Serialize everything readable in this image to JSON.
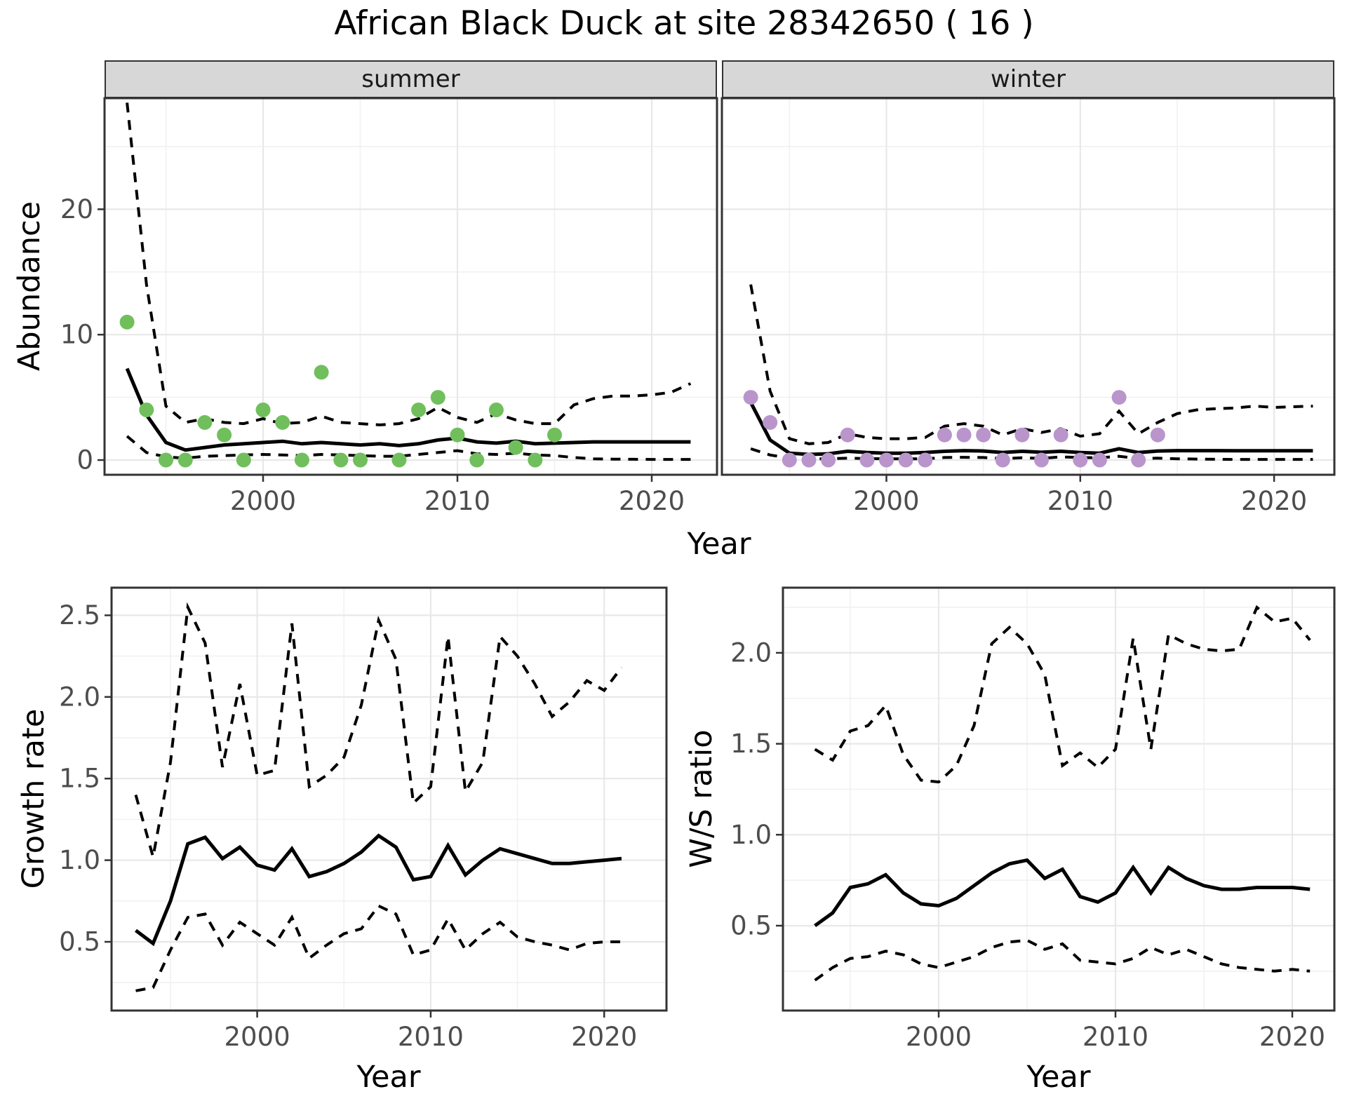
{
  "title": "African Black Duck at site 28342650 ( 16 )",
  "axes": {
    "x_label": "Year",
    "abundance_label": "Abundance",
    "growth_label": "Growth rate",
    "ws_label": "W/S ratio"
  },
  "colors": {
    "summer_point": "#70BF5C",
    "winter_point": "#B995CC",
    "line": "#000000",
    "strip_bg": "#D7D7D7",
    "strip_border": "#333333",
    "panel_border": "#333333",
    "grid_major": "#E8E8E8",
    "grid_minor": "#F1F1F1",
    "tick_text": "#4D4D4D",
    "tick_mark": "#333333"
  },
  "chart_data": [
    {
      "type": "line",
      "title": "Abundance by Year faceted by season",
      "xlabel": "Year",
      "ylabel": "Abundance",
      "legend_position": "none",
      "grid": true,
      "xticks": [
        2000,
        2010,
        2020
      ],
      "xtick_labels": [
        "2000",
        "2010",
        "2020"
      ],
      "xticks_minor": [
        1995,
        2005,
        2015
      ],
      "yticks": [
        0,
        10,
        20
      ],
      "ytick_labels": [
        "0",
        "10",
        "20"
      ],
      "yticks_minor": [
        5,
        15,
        25
      ],
      "xlim": [
        1991.5,
        2023.3
      ],
      "ylim": [
        -1.2,
        28.9
      ],
      "line_years": [
        1993,
        1994,
        1995,
        1996,
        1997,
        1998,
        1999,
        2000,
        2001,
        2002,
        2003,
        2004,
        2005,
        2006,
        2007,
        2008,
        2009,
        2010,
        2011,
        2012,
        2013,
        2014,
        2015,
        2016,
        2017,
        2018,
        2019,
        2020,
        2021,
        2022
      ],
      "facets": [
        {
          "label": "summer",
          "points": {
            "years": [
              1993,
              1994,
              1995,
              1996,
              1997,
              1998,
              1999,
              2000,
              2001,
              2002,
              2003,
              2004,
              2005,
              2007,
              2008,
              2009,
              2010,
              2011,
              2012,
              2013,
              2014,
              2015
            ],
            "values": [
              11,
              4,
              0,
              0,
              3,
              2,
              0,
              4,
              3,
              0,
              7,
              0,
              0,
              0,
              4,
              5,
              2,
              0,
              4,
              1,
              0,
              2
            ]
          },
          "median": [
            7.3,
            3.6,
            1.4,
            0.8,
            1.0,
            1.2,
            1.3,
            1.4,
            1.5,
            1.3,
            1.4,
            1.3,
            1.2,
            1.3,
            1.15,
            1.3,
            1.6,
            1.75,
            1.45,
            1.35,
            1.5,
            1.3,
            1.35,
            1.4,
            1.45,
            1.45,
            1.45,
            1.45,
            1.45,
            1.45
          ],
          "upper": [
            28.5,
            14,
            4.3,
            3.0,
            3.3,
            3.0,
            2.9,
            3.3,
            2.9,
            3.0,
            3.5,
            3.0,
            2.9,
            2.8,
            2.9,
            3.3,
            4.2,
            3.4,
            3.0,
            3.7,
            3.2,
            2.9,
            2.9,
            4.4,
            4.9,
            5.1,
            5.1,
            5.2,
            5.4,
            6.1
          ],
          "lower": [
            1.9,
            0.6,
            0.25,
            0.15,
            0.3,
            0.35,
            0.4,
            0.45,
            0.4,
            0.35,
            0.45,
            0.4,
            0.35,
            0.3,
            0.3,
            0.45,
            0.6,
            0.75,
            0.5,
            0.45,
            0.55,
            0.4,
            0.35,
            0.2,
            0.1,
            0.07,
            0.06,
            0.05,
            0.05,
            0.05
          ]
        },
        {
          "label": "winter",
          "points": {
            "years": [
              1993,
              1994,
              1995,
              1996,
              1997,
              1998,
              1999,
              2000,
              2001,
              2002,
              2003,
              2004,
              2005,
              2006,
              2007,
              2008,
              2009,
              2010,
              2011,
              2012,
              2013,
              2014
            ],
            "values": [
              5,
              3,
              0,
              0,
              0,
              2,
              0,
              0,
              0,
              0,
              2,
              2,
              2,
              0,
              2,
              0,
              2,
              0,
              0,
              5,
              0,
              2
            ]
          },
          "median": [
            4.6,
            1.6,
            0.55,
            0.45,
            0.5,
            0.7,
            0.6,
            0.55,
            0.55,
            0.6,
            0.7,
            0.75,
            0.72,
            0.6,
            0.7,
            0.62,
            0.7,
            0.6,
            0.55,
            0.9,
            0.6,
            0.72,
            0.75,
            0.75,
            0.75,
            0.74,
            0.74,
            0.74,
            0.74,
            0.74
          ],
          "upper": [
            14,
            5.5,
            1.7,
            1.3,
            1.4,
            2.1,
            1.8,
            1.7,
            1.7,
            1.8,
            2.7,
            2.9,
            2.7,
            2.0,
            2.5,
            2.2,
            2.5,
            1.9,
            2.1,
            3.9,
            2.1,
            3.0,
            3.7,
            4.0,
            4.1,
            4.15,
            4.3,
            4.2,
            4.25,
            4.3
          ],
          "lower": [
            0.9,
            0.4,
            0.15,
            0.1,
            0.1,
            0.15,
            0.12,
            0.1,
            0.1,
            0.1,
            0.2,
            0.22,
            0.2,
            0.12,
            0.18,
            0.13,
            0.25,
            0.2,
            0.18,
            0.3,
            0.12,
            0.15,
            0.1,
            0.08,
            0.06,
            0.05,
            0.05,
            0.05,
            0.05,
            0.05
          ]
        }
      ]
    },
    {
      "type": "line",
      "title": "Growth rate",
      "xlabel": "Year",
      "ylabel": "Growth rate",
      "grid": true,
      "xticks": [
        2000,
        2010,
        2020
      ],
      "xtick_labels": [
        "2000",
        "2010",
        "2020"
      ],
      "xticks_minor": [
        1995,
        2005,
        2015
      ],
      "yticks": [
        0.5,
        1.0,
        1.5,
        2.0,
        2.5
      ],
      "ytick_labels": [
        "0.5",
        "1.0",
        "1.5",
        "2.0",
        "2.5"
      ],
      "yticks_minor": [
        0.25,
        0.75,
        1.25,
        1.75,
        2.25
      ],
      "xlim": [
        1991.6,
        2023.6
      ],
      "ylim": [
        0.08,
        2.67
      ],
      "years": [
        1993,
        1994,
        1995,
        1996,
        1997,
        1998,
        1999,
        2000,
        2001,
        2002,
        2003,
        2004,
        2005,
        2006,
        2007,
        2008,
        2009,
        2010,
        2011,
        2012,
        2013,
        2014,
        2015,
        2016,
        2017,
        2018,
        2019,
        2020,
        2021
      ],
      "median": [
        0.57,
        0.49,
        0.75,
        1.1,
        1.14,
        1.01,
        1.08,
        0.97,
        0.94,
        1.07,
        0.9,
        0.93,
        0.98,
        1.05,
        1.15,
        1.08,
        0.88,
        0.9,
        1.09,
        0.91,
        1.0,
        1.07,
        1.04,
        1.01,
        0.98,
        0.98,
        0.99,
        1.0,
        1.01
      ],
      "upper": [
        1.4,
        1.02,
        1.6,
        2.55,
        2.33,
        1.57,
        2.08,
        1.52,
        1.55,
        2.45,
        1.45,
        1.52,
        1.63,
        1.95,
        2.47,
        2.23,
        1.35,
        1.45,
        2.37,
        1.42,
        1.6,
        2.37,
        2.25,
        2.08,
        1.88,
        1.97,
        2.1,
        2.04,
        2.18
      ],
      "lower": [
        0.2,
        0.22,
        0.45,
        0.65,
        0.67,
        0.48,
        0.62,
        0.55,
        0.48,
        0.65,
        0.4,
        0.48,
        0.55,
        0.58,
        0.72,
        0.67,
        0.42,
        0.45,
        0.64,
        0.45,
        0.55,
        0.62,
        0.53,
        0.5,
        0.48,
        0.45,
        0.49,
        0.5,
        0.5
      ]
    },
    {
      "type": "line",
      "title": "W/S ratio",
      "xlabel": "Year",
      "ylabel": "W/S ratio",
      "grid": true,
      "xticks": [
        2000,
        2010,
        2020
      ],
      "xtick_labels": [
        "2000",
        "2010",
        "2020"
      ],
      "xticks_minor": [
        1995,
        2005,
        2015
      ],
      "yticks": [
        0.5,
        1.0,
        1.5,
        2.0
      ],
      "ytick_labels": [
        "0.5",
        "1.0",
        "1.5",
        "2.0"
      ],
      "yticks_minor": [
        0.25,
        0.75,
        1.25,
        1.75,
        2.25
      ],
      "xlim": [
        1991.2,
        2022.4
      ],
      "ylim": [
        0.03,
        2.36
      ],
      "years": [
        1993,
        1994,
        1995,
        1996,
        1997,
        1998,
        1999,
        2000,
        2001,
        2002,
        2003,
        2004,
        2005,
        2006,
        2007,
        2008,
        2009,
        2010,
        2011,
        2012,
        2013,
        2014,
        2015,
        2016,
        2017,
        2018,
        2019,
        2020,
        2021
      ],
      "median": [
        0.5,
        0.57,
        0.71,
        0.73,
        0.78,
        0.68,
        0.62,
        0.61,
        0.65,
        0.72,
        0.79,
        0.84,
        0.86,
        0.76,
        0.81,
        0.66,
        0.63,
        0.68,
        0.82,
        0.68,
        0.82,
        0.76,
        0.72,
        0.7,
        0.7,
        0.71,
        0.71,
        0.71,
        0.7
      ],
      "upper": [
        1.47,
        1.41,
        1.57,
        1.6,
        1.71,
        1.44,
        1.3,
        1.29,
        1.38,
        1.6,
        2.05,
        2.14,
        2.05,
        1.88,
        1.38,
        1.45,
        1.37,
        1.47,
        2.08,
        1.47,
        2.1,
        2.05,
        2.02,
        2.01,
        2.02,
        2.25,
        2.17,
        2.19,
        2.07
      ],
      "lower": [
        0.2,
        0.27,
        0.32,
        0.33,
        0.36,
        0.34,
        0.29,
        0.27,
        0.3,
        0.33,
        0.38,
        0.41,
        0.42,
        0.37,
        0.4,
        0.31,
        0.3,
        0.29,
        0.32,
        0.38,
        0.34,
        0.37,
        0.33,
        0.29,
        0.27,
        0.26,
        0.25,
        0.26,
        0.25
      ]
    }
  ]
}
